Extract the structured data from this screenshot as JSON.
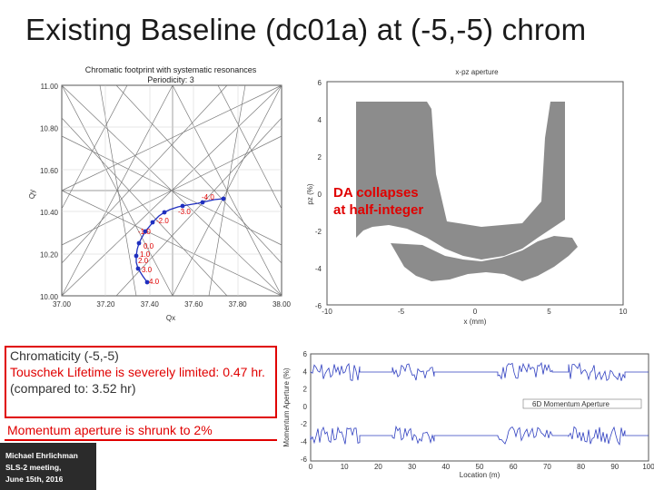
{
  "slide": {
    "title": "Existing Baseline (dc01a) at (-5,-5) chrom"
  },
  "footprint": {
    "title_line1": "Chromatic footprint with systematic resonances",
    "title_line2": "Periodicity: 3",
    "xlabel": "Qx",
    "ylabel": "Qy",
    "xticks": [
      "37.00",
      "37.20",
      "37.40",
      "37.60",
      "37.80",
      "38.00"
    ],
    "yticks": [
      "10.00",
      "10.20",
      "10.40",
      "10.60",
      "10.80",
      "11.00"
    ],
    "chrom_labels": [
      "-4.0",
      "-3.0",
      "-2.0",
      "-1.0",
      "0.0",
      "1.0",
      "2.0",
      "3.0",
      "4.0"
    ],
    "colors": {
      "path": "#1f2fbf",
      "label": "#e00000"
    }
  },
  "aperture": {
    "title": "x-pz aperture",
    "xlabel": "x (mm)",
    "ylabel": "pz (%)",
    "xticks": [
      "-10",
      "-5",
      "0",
      "5",
      "10"
    ],
    "yticks": [
      "6",
      "4",
      "2",
      "0",
      "-2",
      "-4",
      "-6"
    ],
    "note_line1": "DA collapses",
    "note_line2": "at half-integer"
  },
  "info": {
    "line1": "Chromaticity (-5,-5)",
    "line2": "Touschek Lifetime is severely limited:  0.47 hr.",
    "line3": "(compared to: 3.52 hr)",
    "momentum": "Momentum aperture is shrunk to 2%"
  },
  "momentum_plot": {
    "xlabel": "Location (m)",
    "ylabel": "Momentum Aperture (%)",
    "legend": "6D Momentum Aperture",
    "xticks": [
      "0",
      "10",
      "20",
      "30",
      "40",
      "50",
      "60",
      "70",
      "80",
      "90",
      "100"
    ],
    "yticks": [
      "6",
      "4",
      "2",
      "0",
      "-2",
      "-4",
      "-6"
    ]
  },
  "credit": {
    "line1": "Michael Ehrlichman",
    "line2": "SLS-2 meeting,",
    "line3": "June 15th, 2016"
  }
}
